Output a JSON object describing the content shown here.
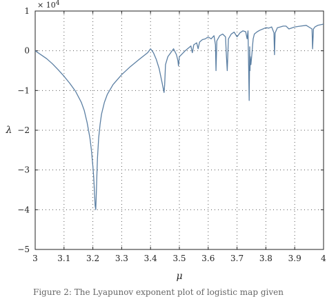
{
  "caption": "Figure 2: The Lyapunov exponent plot of logistic map given",
  "chart_data": {
    "type": "line",
    "title": "",
    "xlabel": "μ",
    "ylabel": "λ",
    "y_exponent_label": "× 10",
    "y_exponent_power": "4",
    "xlim": [
      3,
      4
    ],
    "ylim": [
      -5,
      1
    ],
    "x_ticks": [
      "3",
      "3.1",
      "3.2",
      "3.3",
      "3.4",
      "3.5",
      "3.6",
      "3.7",
      "3.8",
      "3.9",
      "4"
    ],
    "y_ticks": [
      "1",
      "0",
      "−1",
      "−2",
      "−3",
      "−4",
      "−5"
    ],
    "grid": true,
    "line_color": "#5b7fa3",
    "series": [
      {
        "x": [
          3.0,
          3.02,
          3.04,
          3.06,
          3.08,
          3.1,
          3.12,
          3.14,
          3.16,
          3.17,
          3.18,
          3.19,
          3.195,
          3.2,
          3.203,
          3.206,
          3.208,
          3.21,
          3.212,
          3.214,
          3.216,
          3.22,
          3.225,
          3.23,
          3.24,
          3.25,
          3.27,
          3.3,
          3.33,
          3.36,
          3.39,
          3.4,
          3.41,
          3.42,
          3.43,
          3.44,
          3.447,
          3.449,
          3.452,
          3.46,
          3.47,
          3.48,
          3.49,
          3.495,
          3.497,
          3.5,
          3.52,
          3.54,
          3.545,
          3.55,
          3.56,
          3.565,
          3.57,
          3.58,
          3.59,
          3.6,
          3.61,
          3.62,
          3.625,
          3.627,
          3.63,
          3.64,
          3.65,
          3.66,
          3.663,
          3.666,
          3.67,
          3.68,
          3.69,
          3.7,
          3.71,
          3.72,
          3.73,
          3.735,
          3.738,
          3.74,
          3.742,
          3.744,
          3.745,
          3.746,
          3.748,
          3.75,
          3.752,
          3.754,
          3.756,
          3.76,
          3.77,
          3.78,
          3.79,
          3.8,
          3.81,
          3.82,
          3.828,
          3.83,
          3.832,
          3.84,
          3.85,
          3.86,
          3.87,
          3.88,
          3.9,
          3.92,
          3.94,
          3.96,
          3.962,
          3.965,
          3.97,
          3.98,
          4.0
        ],
        "y": [
          0.0,
          -0.1,
          -0.2,
          -0.33,
          -0.48,
          -0.64,
          -0.82,
          -1.02,
          -1.3,
          -1.5,
          -1.8,
          -2.2,
          -2.5,
          -2.9,
          -3.2,
          -3.6,
          -3.9,
          -4.0,
          -3.6,
          -3.1,
          -2.7,
          -2.2,
          -1.85,
          -1.6,
          -1.3,
          -1.1,
          -0.85,
          -0.6,
          -0.4,
          -0.22,
          -0.05,
          0.05,
          -0.05,
          -0.22,
          -0.45,
          -0.8,
          -1.05,
          -0.85,
          -0.35,
          -0.15,
          -0.05,
          0.05,
          -0.1,
          -0.25,
          -0.38,
          -0.15,
          0.0,
          0.12,
          -0.05,
          0.15,
          0.2,
          0.05,
          0.22,
          0.28,
          0.3,
          0.35,
          0.3,
          0.38,
          0.15,
          -0.5,
          0.25,
          0.38,
          0.42,
          0.35,
          -0.1,
          -0.5,
          0.3,
          0.42,
          0.47,
          0.35,
          0.45,
          0.5,
          0.48,
          0.3,
          0.5,
          -0.3,
          -1.25,
          0.1,
          -0.5,
          -0.15,
          -0.35,
          -0.2,
          -0.05,
          0.15,
          0.3,
          0.42,
          0.48,
          0.52,
          0.55,
          0.58,
          0.57,
          0.6,
          0.45,
          -0.1,
          0.45,
          0.58,
          0.6,
          0.62,
          0.62,
          0.55,
          0.6,
          0.62,
          0.64,
          0.55,
          0.05,
          0.55,
          0.6,
          0.64,
          0.67
        ]
      }
    ]
  }
}
